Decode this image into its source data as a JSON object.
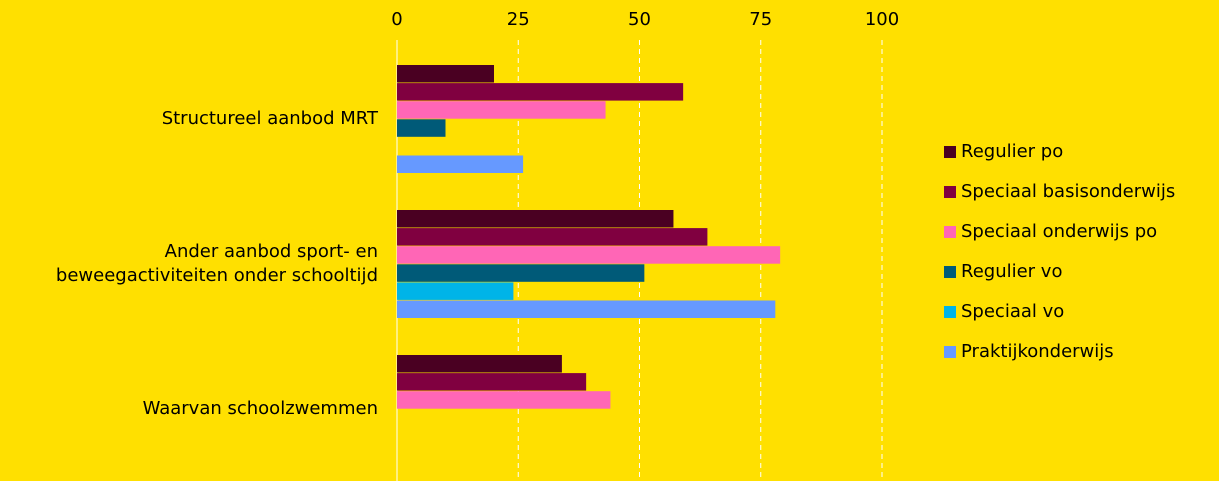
{
  "chart_data": {
    "type": "hbar",
    "categories": [
      "Structureel aanbod MRT",
      "Ander aanbod sport- en beweegactiviteiten onder schooltijd",
      "Waarvan schoolzwemmen"
    ],
    "series": [
      {
        "name": "Regulier po",
        "color": "#4a0022",
        "values": [
          20,
          57,
          34
        ]
      },
      {
        "name": "Speciaal basisonderwijs",
        "color": "#800040",
        "values": [
          59,
          64,
          39
        ]
      },
      {
        "name": "Speciaal onderwijs po",
        "color": "#ff66b6",
        "values": [
          43,
          79,
          44
        ]
      },
      {
        "name": "Regulier vo",
        "color": "#005a78",
        "values": [
          10,
          51,
          null
        ]
      },
      {
        "name": "Speciaal vo",
        "color": "#00b4e8",
        "values": [
          null,
          24,
          null
        ]
      },
      {
        "name": "Praktijkonderwijs",
        "color": "#6699ff",
        "values": [
          26,
          78,
          null
        ]
      }
    ],
    "xlim": [
      0,
      100
    ],
    "xticks": [
      0,
      25,
      50,
      75,
      100
    ],
    "grid": true,
    "legend": "right"
  }
}
